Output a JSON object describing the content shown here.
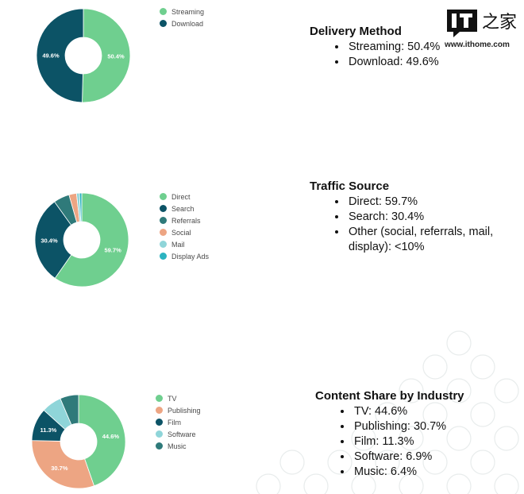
{
  "watermark": {
    "logo_text": "IT之家",
    "url": "www.ithome.com"
  },
  "chart_data": [
    {
      "type": "pie",
      "title": "Delivery Method",
      "categories": [
        "Streaming",
        "Download"
      ],
      "values": [
        50.4,
        49.6
      ],
      "labels": [
        "50.4%",
        "49.6%"
      ],
      "colors": [
        "#6fcf8f",
        "#0c5366"
      ],
      "legend": "right",
      "summary": [
        "Streaming: 50.4%",
        "Download: 49.6%"
      ]
    },
    {
      "type": "pie",
      "title": "Traffic Source",
      "categories": [
        "Direct",
        "Search",
        "Referrals",
        "Social",
        "Mail",
        "Display Ads"
      ],
      "values": [
        59.7,
        30.4,
        5.5,
        2.6,
        1.0,
        0.8
      ],
      "labels": [
        "59.7%",
        "30.4%",
        "",
        "",
        "",
        ""
      ],
      "colors": [
        "#6fcf8f",
        "#0c5366",
        "#2f7a7a",
        "#eda583",
        "#8fd5d9",
        "#2bb3c0"
      ],
      "legend": "right",
      "summary": [
        "Direct: 59.7%",
        "Search: 30.4%",
        "Other (social, referrals, mail, display): <10%"
      ]
    },
    {
      "type": "pie",
      "title": "Content Share by Industry",
      "categories": [
        "TV",
        "Publishing",
        "Film",
        "Software",
        "Music"
      ],
      "values": [
        44.6,
        30.7,
        11.3,
        6.9,
        6.4
      ],
      "labels": [
        "44.6%",
        "30.7%",
        "11.3%",
        "",
        ""
      ],
      "colors": [
        "#6fcf8f",
        "#eda583",
        "#0c5366",
        "#8fd5d9",
        "#2f7a7a"
      ],
      "legend": "right",
      "summary": [
        "TV: 44.6%",
        "Publishing: 30.7%",
        "Film: 11.3%",
        "Software: 6.9%",
        "Music: 6.4%"
      ]
    }
  ]
}
